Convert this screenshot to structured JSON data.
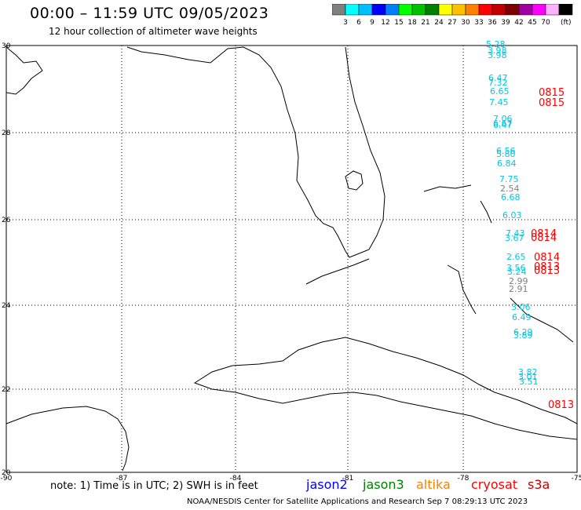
{
  "header": {
    "title": "00:00 – 11:59 UTC 09/05/2023",
    "subtitle": "12 hour collection of altimeter wave heights"
  },
  "colorbar": {
    "unit": "(ft)",
    "colors": [
      "#808080",
      "#00ffff",
      "#00bfff",
      "#0000ff",
      "#0080ff",
      "#00ff00",
      "#00c000",
      "#008000",
      "#ffff00",
      "#ffc000",
      "#ff8000",
      "#ff0000",
      "#c00000",
      "#800000",
      "#a000a0",
      "#ff00ff",
      "#ffb0ff",
      "#000000"
    ],
    "labels": [
      "3",
      "6",
      "9",
      "12",
      "15",
      "18",
      "21",
      "24",
      "27",
      "30",
      "33",
      "36",
      "39",
      "42",
      "45",
      "70"
    ]
  },
  "axes": {
    "lat_labels": [
      "30",
      "28",
      "26",
      "24",
      "22",
      "20"
    ],
    "lon_labels": [
      "-90",
      "-87",
      "-84",
      "-81",
      "-78",
      "-75"
    ]
  },
  "wave_labels": [
    {
      "text": "5.28",
      "color": "#00c8e6"
    },
    {
      "text": "3.98",
      "color": "#00c8e6"
    },
    {
      "text": "3.98",
      "color": "#00c8e6"
    },
    {
      "text": "6.47",
      "color": "#00c8e6"
    },
    {
      "text": "7.32",
      "color": "#00c8e6"
    },
    {
      "text": "6.65",
      "color": "#00c8e6"
    },
    {
      "text": "7.45",
      "color": "#00c8e6"
    },
    {
      "text": "7.06",
      "color": "#00c8e6"
    },
    {
      "text": "6.67",
      "color": "#00c8e6"
    },
    {
      "text": "6.47",
      "color": "#00c8e6"
    },
    {
      "text": "6.56",
      "color": "#00c8e6"
    },
    {
      "text": "5.80",
      "color": "#00c8e6"
    },
    {
      "text": "6.84",
      "color": "#00c8e6"
    },
    {
      "text": "7.75",
      "color": "#00c8e6"
    },
    {
      "text": "2.54",
      "color": "#808080"
    },
    {
      "text": "6.68",
      "color": "#00c8e6"
    },
    {
      "text": "6.03",
      "color": "#00c8e6"
    },
    {
      "text": "7.43",
      "color": "#00c8e6"
    },
    {
      "text": "3.67",
      "color": "#00c8e6"
    },
    {
      "text": "2.65",
      "color": "#00c8e6"
    },
    {
      "text": "3.56",
      "color": "#00c8e6"
    },
    {
      "text": "3.24",
      "color": "#00c8e6"
    },
    {
      "text": "2.99",
      "color": "#808080"
    },
    {
      "text": "2.91",
      "color": "#808080"
    },
    {
      "text": "3.06",
      "color": "#00c8e6"
    },
    {
      "text": "6.49",
      "color": "#00c8e6"
    },
    {
      "text": "6.29",
      "color": "#00c8e6"
    },
    {
      "text": "3.89",
      "color": "#00c8e6"
    },
    {
      "text": "3.82",
      "color": "#00c8e6"
    },
    {
      "text": "3.01",
      "color": "#00c8e6"
    },
    {
      "text": "3.51",
      "color": "#00c8e6"
    }
  ],
  "time_labels": [
    {
      "text": "0815",
      "color": "#ff0000"
    },
    {
      "text": "0815",
      "color": "#ff0000"
    },
    {
      "text": "0814",
      "color": "#ff0000"
    },
    {
      "text": "0814",
      "color": "#ff0000"
    },
    {
      "text": "0814",
      "color": "#ff0000"
    },
    {
      "text": "0813",
      "color": "#ff0000"
    },
    {
      "text": "0813",
      "color": "#ff0000"
    },
    {
      "text": "0813",
      "color": "#ff0000"
    }
  ],
  "footer": {
    "note": "note: 1) Time is in UTC; 2) SWH is in feet",
    "satellites": [
      {
        "name": "jason2",
        "color": "#0000ff"
      },
      {
        "name": "jason3",
        "color": "#008000"
      },
      {
        "name": "altika",
        "color": "#ff8000"
      },
      {
        "name": "cryosat",
        "color": "#ff0000"
      },
      {
        "name": "s3a",
        "color": "#c00000"
      }
    ],
    "credit": "NOAA/NESDIS Center for Satellite Applications and Research    Sep  7 08:29:13 UTC 2023"
  }
}
